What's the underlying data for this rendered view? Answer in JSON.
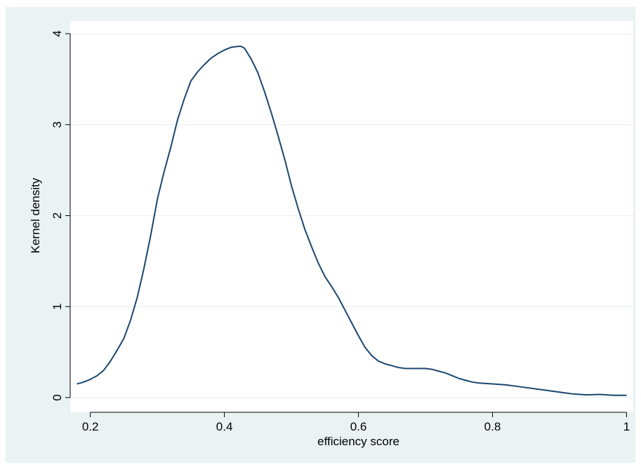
{
  "chart_data": {
    "type": "line",
    "title": "",
    "xlabel": "efficiency score",
    "ylabel": "Kernel density",
    "xlim": [
      0.17,
      1.01
    ],
    "ylim": [
      0,
      4
    ],
    "xticks": [
      0.2,
      0.4,
      0.6,
      0.8,
      1
    ],
    "xtick_labels": [
      "0.2",
      "0.4",
      "0.6",
      "0.8",
      "1"
    ],
    "yticks": [
      0,
      1,
      2,
      3,
      4
    ],
    "ytick_labels": [
      "0",
      "1",
      "2",
      "3",
      "4"
    ],
    "grid": "horizontal",
    "legend": "none",
    "colors": {
      "line": "#1a476f",
      "plot_background": "#ffffff",
      "outer_background": "#eaf2f3",
      "grid": "#eaf2f3",
      "axis": "#000000"
    },
    "series": [
      {
        "x": [
          0.18,
          0.19,
          0.2,
          0.21,
          0.22,
          0.23,
          0.24,
          0.25,
          0.26,
          0.27,
          0.28,
          0.29,
          0.3,
          0.31,
          0.32,
          0.33,
          0.34,
          0.35,
          0.36,
          0.37,
          0.38,
          0.39,
          0.4,
          0.41,
          0.42,
          0.425,
          0.43,
          0.44,
          0.45,
          0.46,
          0.47,
          0.48,
          0.49,
          0.5,
          0.51,
          0.52,
          0.53,
          0.54,
          0.55,
          0.56,
          0.57,
          0.58,
          0.59,
          0.6,
          0.61,
          0.62,
          0.63,
          0.64,
          0.65,
          0.66,
          0.67,
          0.68,
          0.69,
          0.7,
          0.71,
          0.72,
          0.73,
          0.74,
          0.75,
          0.76,
          0.77,
          0.78,
          0.8,
          0.82,
          0.84,
          0.86,
          0.88,
          0.9,
          0.92,
          0.94,
          0.96,
          0.98,
          1.0
        ],
        "y": [
          0.15,
          0.17,
          0.2,
          0.24,
          0.3,
          0.4,
          0.52,
          0.65,
          0.85,
          1.1,
          1.42,
          1.78,
          2.18,
          2.48,
          2.75,
          3.05,
          3.28,
          3.48,
          3.58,
          3.66,
          3.73,
          3.78,
          3.82,
          3.85,
          3.86,
          3.86,
          3.84,
          3.72,
          3.57,
          3.36,
          3.13,
          2.88,
          2.62,
          2.33,
          2.08,
          1.85,
          1.66,
          1.48,
          1.33,
          1.22,
          1.1,
          0.96,
          0.82,
          0.68,
          0.55,
          0.46,
          0.4,
          0.37,
          0.35,
          0.33,
          0.32,
          0.32,
          0.32,
          0.32,
          0.31,
          0.29,
          0.27,
          0.24,
          0.21,
          0.19,
          0.17,
          0.16,
          0.15,
          0.14,
          0.12,
          0.1,
          0.08,
          0.06,
          0.04,
          0.03,
          0.035,
          0.025,
          0.025
        ]
      }
    ]
  }
}
